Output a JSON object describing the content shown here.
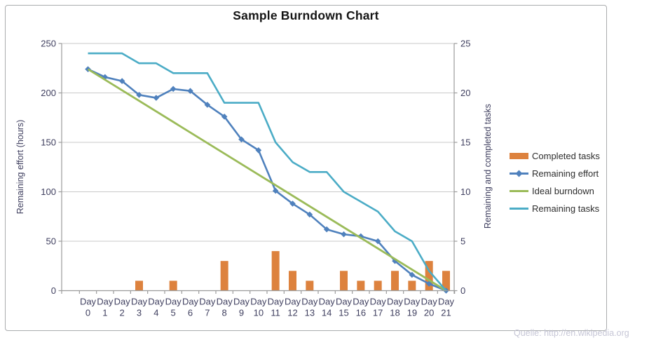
{
  "source_note": "Quelle: http://en.wikipedia.org",
  "chart_data": {
    "type": "combo_bar_line",
    "title": "Sample Burndown Chart",
    "grid": "horizontal",
    "legend": {
      "position": "right"
    },
    "x_axis": {
      "categories": [
        "Day 0",
        "Day 1",
        "Day 2",
        "Day 3",
        "Day 4",
        "Day 5",
        "Day 6",
        "Day 7",
        "Day 8",
        "Day 9",
        "Day 10",
        "Day 11",
        "Day 12",
        "Day 13",
        "Day 14",
        "Day 15",
        "Day 16",
        "Day 17",
        "Day 18",
        "Day 19",
        "Day 20",
        "Day 21"
      ]
    },
    "left_axis": {
      "label": "Remaining effort (hours)",
      "min": 0,
      "max": 250,
      "step": 50,
      "ticks": [
        0,
        50,
        100,
        150,
        200,
        250
      ]
    },
    "right_axis": {
      "label": "Remaining and  completed tasks",
      "min": 0,
      "max": 25,
      "step": 5,
      "ticks": [
        0,
        5,
        10,
        15,
        20,
        25
      ]
    },
    "series": [
      {
        "name": "Completed tasks",
        "type": "bar",
        "axis": "right",
        "color": "#DD823E",
        "values": [
          0,
          0,
          0,
          1,
          0,
          1,
          0,
          0,
          3,
          0,
          0,
          4,
          2,
          1,
          0,
          2,
          1,
          1,
          2,
          1,
          3,
          2
        ]
      },
      {
        "name": "Remaining effort",
        "type": "line",
        "marker": "diamond",
        "axis": "left",
        "color": "#4F81BD",
        "values": [
          224,
          216,
          212,
          198,
          195,
          204,
          202,
          188,
          176,
          153,
          142,
          101,
          88,
          77,
          62,
          57,
          55,
          50,
          30,
          16,
          7,
          0
        ]
      },
      {
        "name": "Ideal burndown",
        "type": "line",
        "axis": "left",
        "color": "#9BBB59",
        "endpoints": {
          "days": [
            0,
            21
          ],
          "values": [
            224,
            0
          ]
        }
      },
      {
        "name": "Remaining tasks",
        "type": "line",
        "axis": "right",
        "color": "#4BACC6",
        "values": [
          24,
          24,
          24,
          23,
          23,
          22,
          22,
          22,
          19,
          19,
          19,
          15,
          13,
          12,
          12,
          10,
          9,
          8,
          6,
          5,
          2,
          0
        ]
      }
    ]
  }
}
